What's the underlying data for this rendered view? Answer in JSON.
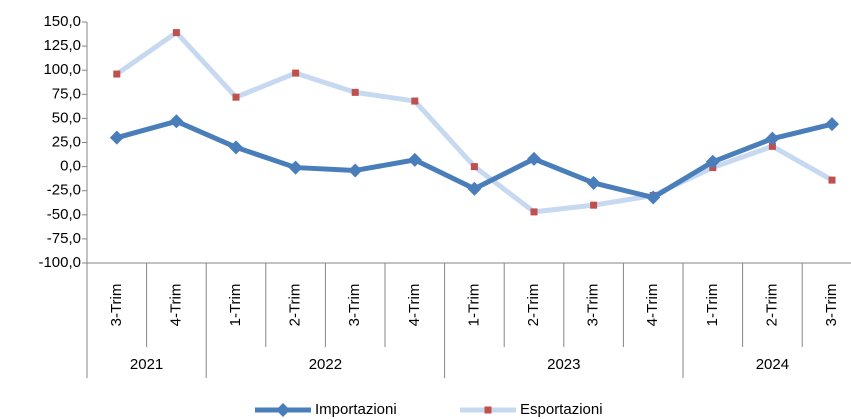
{
  "chart_data": {
    "type": "line",
    "category_groups": [
      {
        "label": "2021",
        "categories": [
          "3-Trim",
          "4-Trim"
        ]
      },
      {
        "label": "2022",
        "categories": [
          "1-Trim",
          "2-Trim",
          "3-Trim",
          "4-Trim"
        ]
      },
      {
        "label": "2023",
        "categories": [
          "1-Trim",
          "2-Trim",
          "3-Trim",
          "4-Trim"
        ]
      },
      {
        "label": "2024",
        "categories": [
          "1-Trim",
          "2-Trim",
          "3-Trim"
        ]
      }
    ],
    "series": [
      {
        "name": "Importazioni",
        "color": "#4a7ebb",
        "values": [
          30,
          47,
          20,
          -1,
          -4,
          7,
          -23,
          8,
          -17,
          -32,
          5,
          29,
          44
        ]
      },
      {
        "name": "Esportazioni",
        "color": "#c6d9f1",
        "marker_color": "#c0504d",
        "values": [
          96,
          139,
          72,
          97,
          77,
          68,
          0,
          -47,
          -40,
          -30,
          -1,
          21,
          -14
        ]
      }
    ],
    "ylim": [
      -100,
      150
    ],
    "yticks": [
      {
        "value": -100,
        "label": "-100,0"
      },
      {
        "value": -75,
        "label": "-75,0"
      },
      {
        "value": -50,
        "label": "-50,0"
      },
      {
        "value": -25,
        "label": "-25,0"
      },
      {
        "value": 0,
        "label": "0,0"
      },
      {
        "value": 25,
        "label": "25,0"
      },
      {
        "value": 50,
        "label": "50,0"
      },
      {
        "value": 75,
        "label": "75,0"
      },
      {
        "value": 100,
        "label": "100,0"
      },
      {
        "value": 125,
        "label": "125,0"
      },
      {
        "value": 150,
        "label": "150,0"
      }
    ],
    "grid": false,
    "legend": "bottom"
  }
}
